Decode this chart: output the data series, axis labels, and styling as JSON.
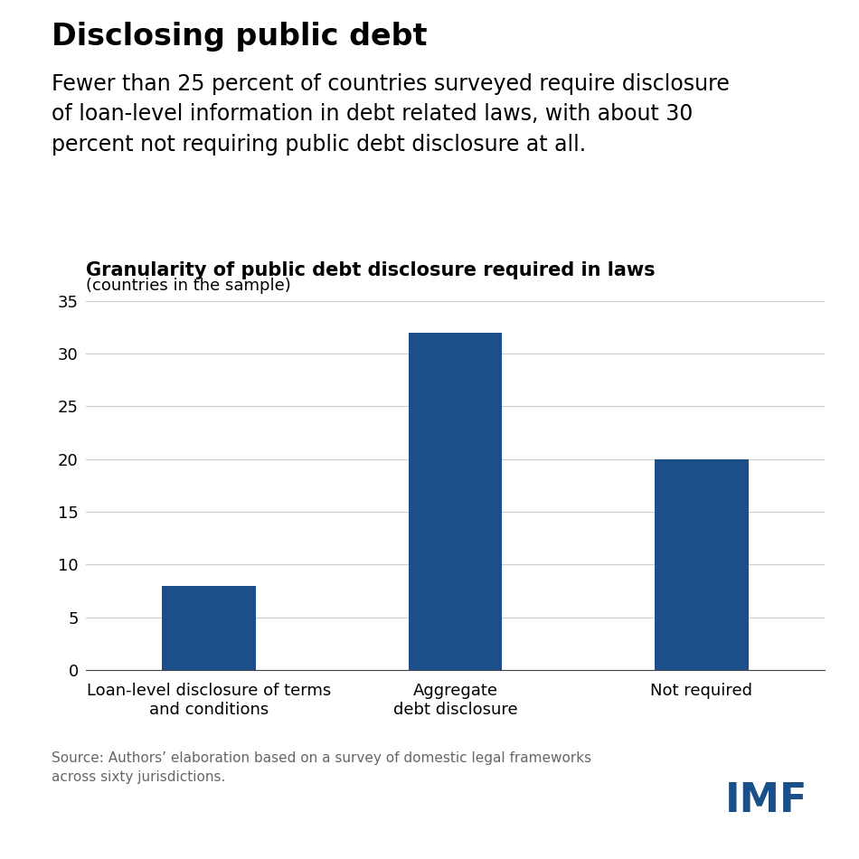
{
  "main_title": "Disclosing public debt",
  "subtitle_lines": "Fewer than 25 percent of countries surveyed require disclosure\nof loan-level information in debt related laws, with about 30\npercent not requiring public debt disclosure at all.",
  "chart_title": "Granularity of public debt disclosure required in laws",
  "chart_subtitle": "(countries in the sample)",
  "categories": [
    "Loan-level disclosure of terms\nand conditions",
    "Aggregate\ndebt disclosure",
    "Not required"
  ],
  "values": [
    8,
    32,
    20
  ],
  "bar_color": "#1b4f8a",
  "ylim": [
    0,
    35
  ],
  "yticks": [
    0,
    5,
    10,
    15,
    20,
    25,
    30,
    35
  ],
  "source_text": "Source: Authors’ elaboration based on a survey of domestic legal frameworks\nacross sixty jurisdictions.",
  "imf_text": "IMF",
  "background_color": "#ffffff",
  "grid_color": "#cccccc",
  "main_title_fontsize": 24,
  "subtitle_fontsize": 17,
  "chart_title_fontsize": 15,
  "chart_subtitle_fontsize": 13,
  "tick_fontsize": 13,
  "source_fontsize": 11,
  "imf_color": "#1b4f8a",
  "imf_fontsize": 32,
  "bar_width": 0.38
}
